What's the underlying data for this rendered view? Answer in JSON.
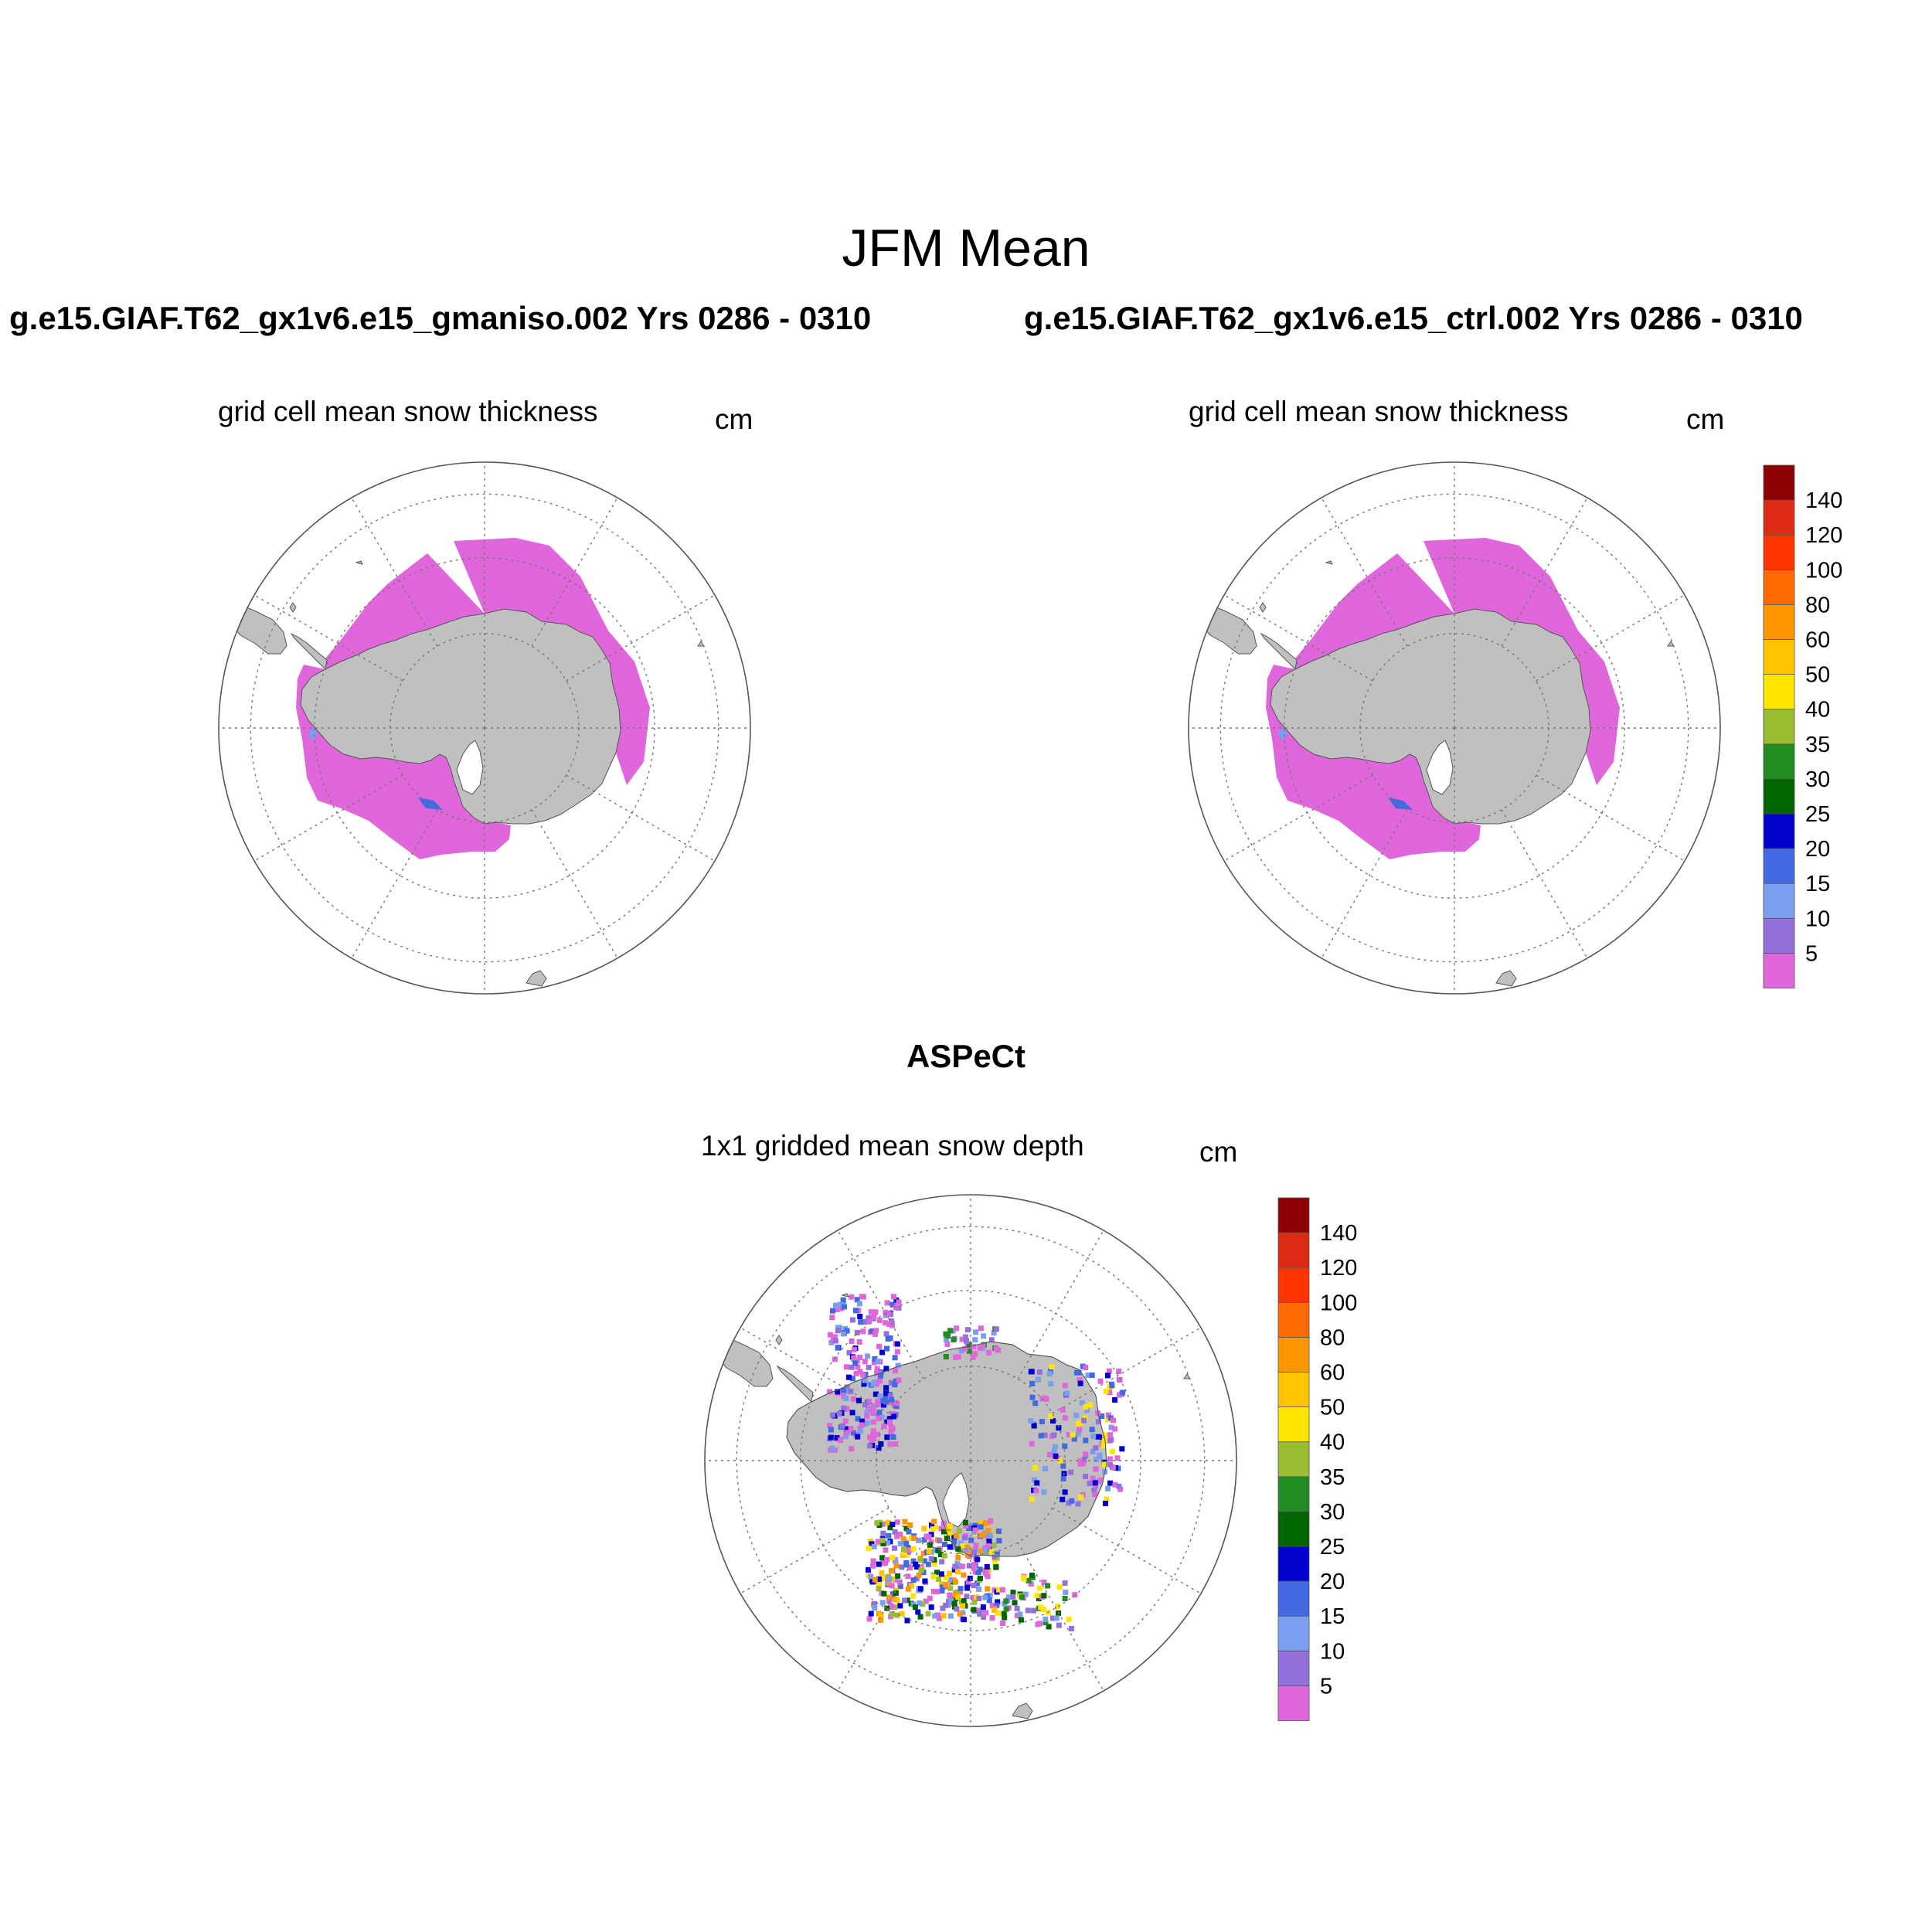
{
  "figure": {
    "title": "JFM Mean",
    "panels": [
      {
        "run": "g.e15.GIAF.T62_gx1v6.e15_gmaniso.002  Yrs 0286 - 0310",
        "variable": "grid cell mean snow thickness",
        "units": "cm"
      },
      {
        "run": "g.e15.GIAF.T62_gx1v6.e15_ctrl.002  Yrs 0286 - 0310",
        "variable": "grid cell mean snow thickness",
        "units": "cm"
      },
      {
        "run": "ASPeCt",
        "variable": "1x1 gridded mean snow depth",
        "units": "cm"
      }
    ]
  },
  "map": {
    "projection": "south polar stereographic",
    "land_color": "#c0c0c0",
    "grid_style": "dotted"
  },
  "colorbar": {
    "labels": [
      "5",
      "10",
      "15",
      "20",
      "25",
      "30",
      "35",
      "40",
      "50",
      "60",
      "80",
      "100",
      "120",
      "140"
    ],
    "colors": [
      "#e066dc",
      "#9370db",
      "#7b9ff0",
      "#4169e1",
      "#0000cd",
      "#006400",
      "#228b22",
      "#9abd32",
      "#ffe600",
      "#ffc400",
      "#ff9800",
      "#ff6a00",
      "#ff3300",
      "#dc2a14",
      "#8b0000"
    ]
  }
}
